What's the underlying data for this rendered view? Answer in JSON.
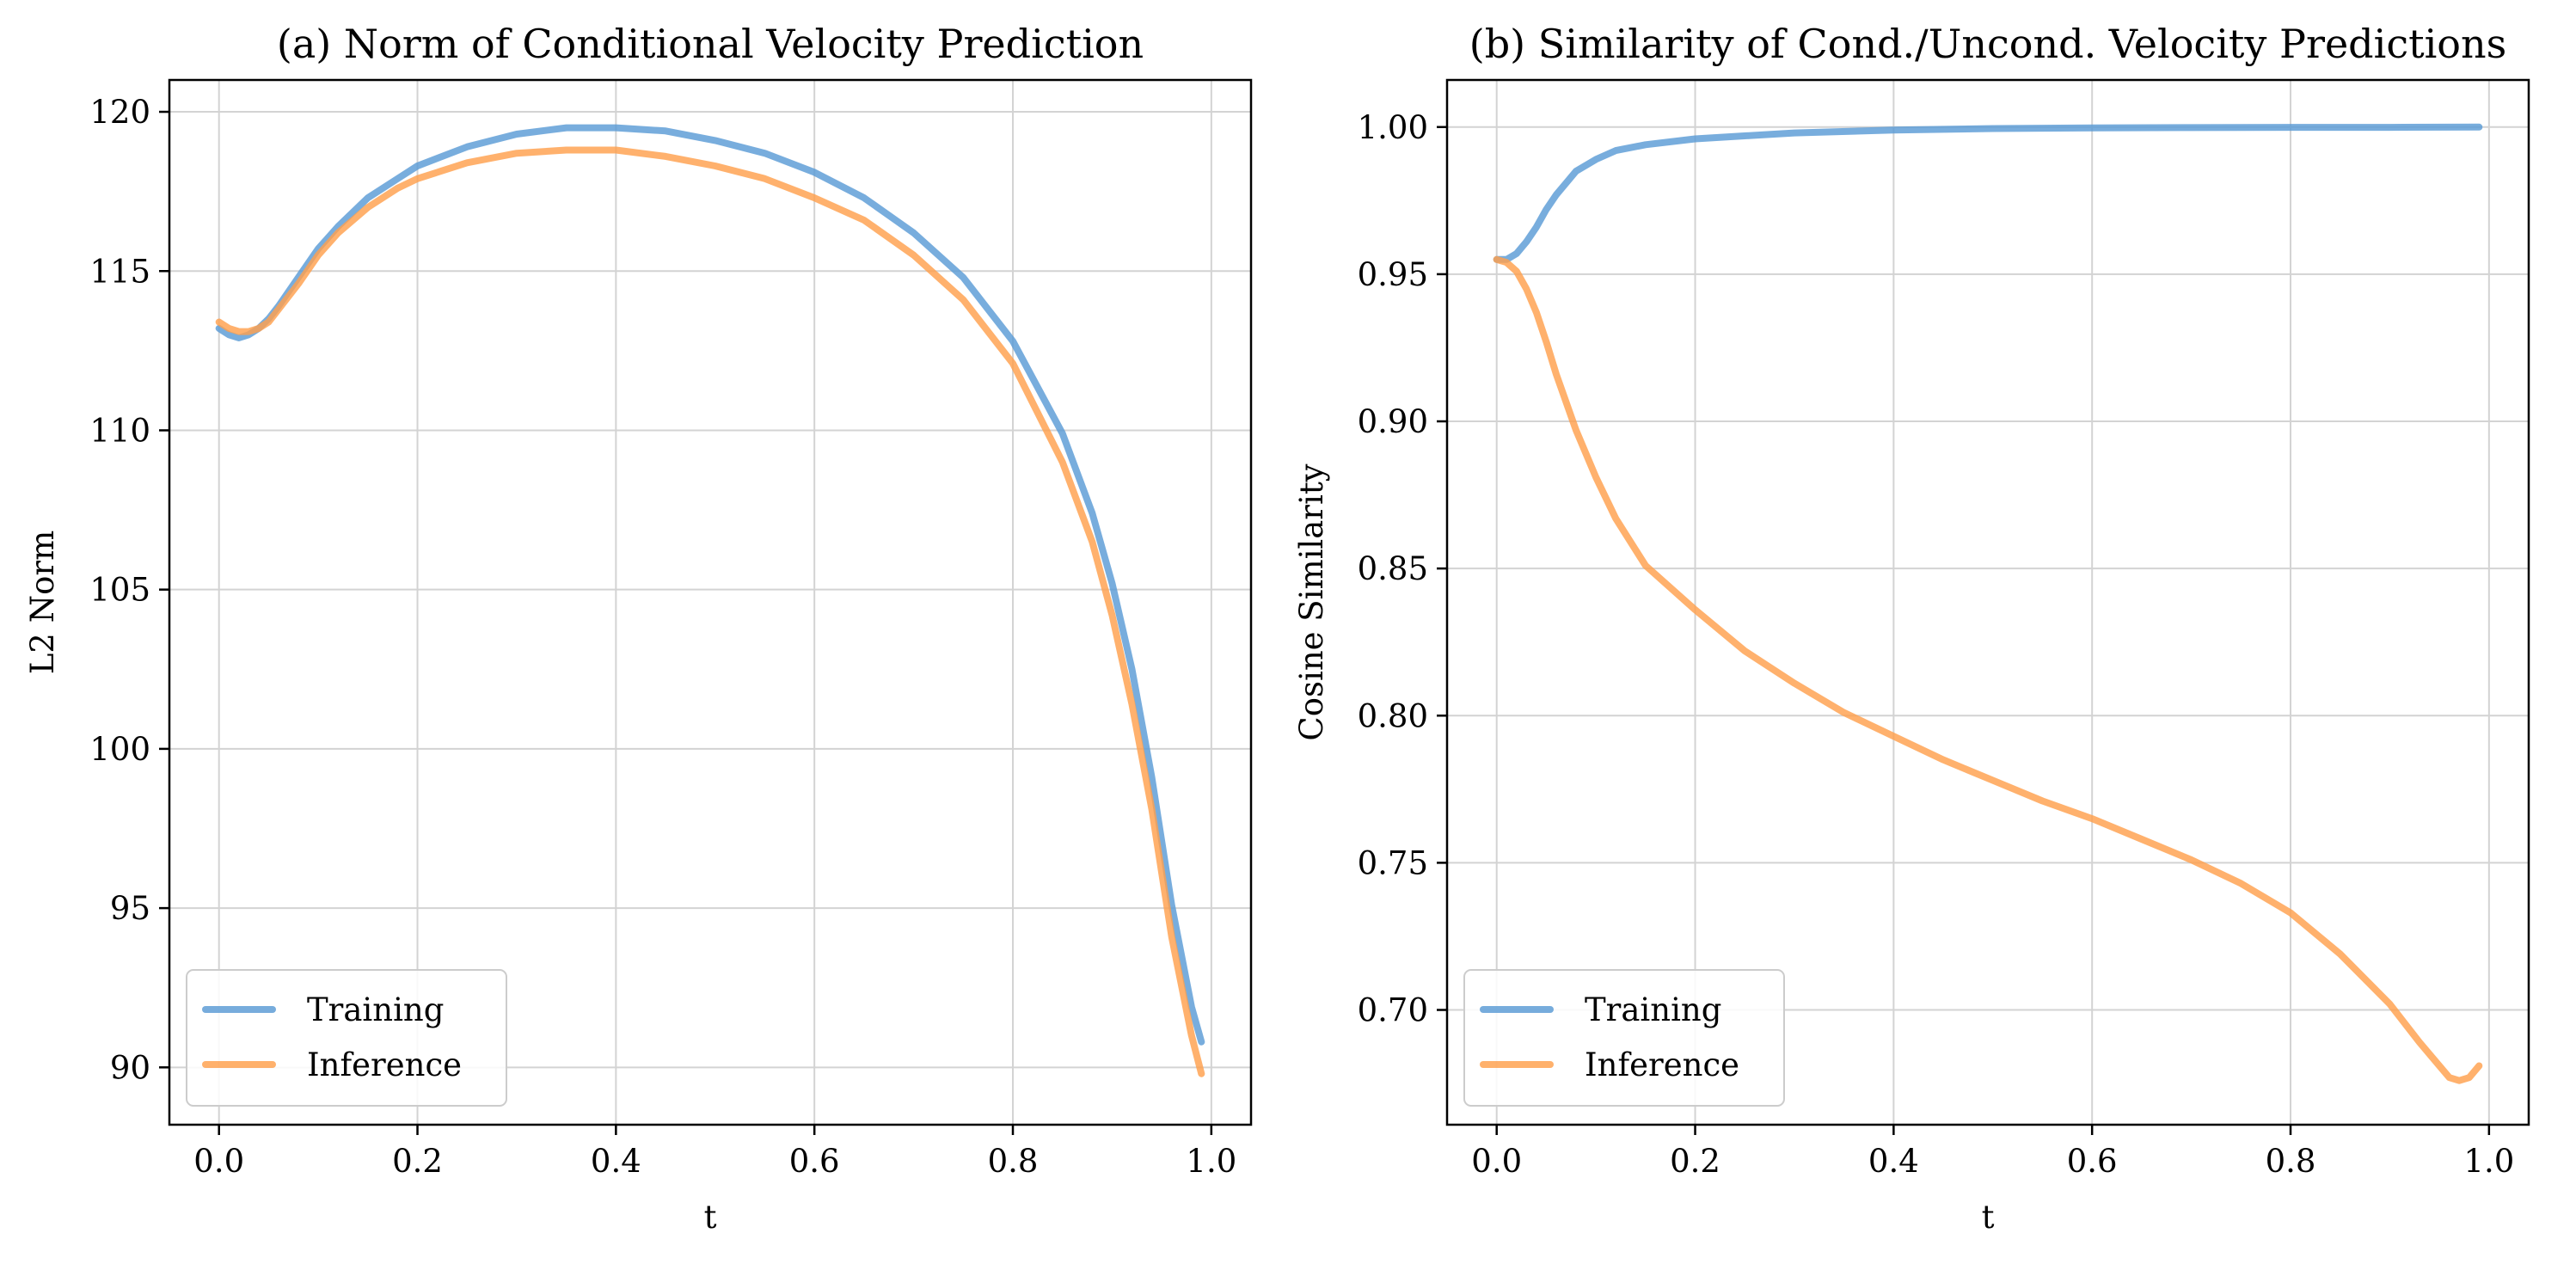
{
  "colors": {
    "training": "#5a9bd5",
    "inference": "#ffa04d"
  },
  "chart_data": [
    {
      "type": "line",
      "title": "(a) Norm of Conditional Velocity Prediction",
      "xlabel": "t",
      "ylabel": "L2 Norm",
      "xlim": [
        -0.05,
        1.04
      ],
      "ylim": [
        88.2,
        121.0
      ],
      "xticks": [
        0.0,
        0.2,
        0.4,
        0.6,
        0.8,
        1.0
      ],
      "xtick_labels": [
        "0.0",
        "0.2",
        "0.4",
        "0.6",
        "0.8",
        "1.0"
      ],
      "yticks": [
        90,
        95,
        100,
        105,
        110,
        115,
        120
      ],
      "ytick_labels": [
        "90",
        "95",
        "100",
        "105",
        "110",
        "115",
        "120"
      ],
      "grid": true,
      "legend": "lower-left",
      "series": [
        {
          "name": "Training",
          "x": [
            0.0,
            0.01,
            0.02,
            0.03,
            0.04,
            0.05,
            0.06,
            0.08,
            0.1,
            0.12,
            0.15,
            0.18,
            0.2,
            0.25,
            0.3,
            0.35,
            0.4,
            0.45,
            0.5,
            0.55,
            0.6,
            0.65,
            0.7,
            0.75,
            0.8,
            0.85,
            0.88,
            0.9,
            0.92,
            0.94,
            0.96,
            0.98,
            0.99
          ],
          "y": [
            113.2,
            113.0,
            112.9,
            113.0,
            113.2,
            113.5,
            113.9,
            114.8,
            115.7,
            116.4,
            117.3,
            117.9,
            118.3,
            118.9,
            119.3,
            119.5,
            119.5,
            119.4,
            119.1,
            118.7,
            118.1,
            117.3,
            116.2,
            114.8,
            112.8,
            109.9,
            107.4,
            105.2,
            102.5,
            99.1,
            95.1,
            91.9,
            90.8
          ]
        },
        {
          "name": "Inference",
          "x": [
            0.0,
            0.01,
            0.02,
            0.03,
            0.04,
            0.05,
            0.06,
            0.08,
            0.1,
            0.12,
            0.15,
            0.18,
            0.2,
            0.25,
            0.3,
            0.35,
            0.4,
            0.45,
            0.5,
            0.55,
            0.6,
            0.65,
            0.7,
            0.75,
            0.8,
            0.85,
            0.88,
            0.9,
            0.92,
            0.94,
            0.96,
            0.98,
            0.99
          ],
          "y": [
            113.4,
            113.2,
            113.1,
            113.1,
            113.2,
            113.4,
            113.8,
            114.6,
            115.5,
            116.2,
            117.0,
            117.6,
            117.9,
            118.4,
            118.7,
            118.8,
            118.8,
            118.6,
            118.3,
            117.9,
            117.3,
            116.6,
            115.5,
            114.1,
            112.1,
            109.0,
            106.5,
            104.2,
            101.4,
            98.1,
            94.1,
            91.0,
            89.8
          ]
        }
      ]
    },
    {
      "type": "line",
      "title": "(b) Similarity of Cond./Uncond. Velocity Predictions",
      "xlabel": "t",
      "ylabel": "Cosine Similarity",
      "xlim": [
        -0.05,
        1.04
      ],
      "ylim": [
        0.661,
        1.016
      ],
      "xticks": [
        0.0,
        0.2,
        0.4,
        0.6,
        0.8,
        1.0
      ],
      "xtick_labels": [
        "0.0",
        "0.2",
        "0.4",
        "0.6",
        "0.8",
        "1.0"
      ],
      "yticks": [
        0.7,
        0.75,
        0.8,
        0.85,
        0.9,
        0.95,
        1.0
      ],
      "ytick_labels": [
        "0.70",
        "0.75",
        "0.80",
        "0.85",
        "0.90",
        "0.95",
        "1.00"
      ],
      "grid": true,
      "legend": "lower-left",
      "series": [
        {
          "name": "Training",
          "x": [
            0.0,
            0.01,
            0.02,
            0.03,
            0.04,
            0.05,
            0.06,
            0.07,
            0.08,
            0.1,
            0.12,
            0.15,
            0.2,
            0.25,
            0.3,
            0.4,
            0.5,
            0.6,
            0.7,
            0.8,
            0.9,
            0.99
          ],
          "y": [
            0.955,
            0.955,
            0.957,
            0.961,
            0.966,
            0.972,
            0.977,
            0.981,
            0.985,
            0.989,
            0.992,
            0.994,
            0.996,
            0.997,
            0.998,
            0.999,
            0.9995,
            0.9997,
            0.9998,
            0.9999,
            0.9999,
            1.0
          ]
        },
        {
          "name": "Inference",
          "x": [
            0.0,
            0.01,
            0.02,
            0.03,
            0.04,
            0.05,
            0.06,
            0.08,
            0.1,
            0.12,
            0.15,
            0.2,
            0.25,
            0.3,
            0.35,
            0.4,
            0.45,
            0.5,
            0.55,
            0.6,
            0.65,
            0.7,
            0.75,
            0.8,
            0.85,
            0.9,
            0.93,
            0.95,
            0.96,
            0.97,
            0.98,
            0.99
          ],
          "y": [
            0.955,
            0.954,
            0.951,
            0.945,
            0.937,
            0.927,
            0.916,
            0.897,
            0.881,
            0.867,
            0.851,
            0.836,
            0.822,
            0.811,
            0.801,
            0.793,
            0.785,
            0.778,
            0.771,
            0.765,
            0.758,
            0.751,
            0.743,
            0.733,
            0.719,
            0.702,
            0.689,
            0.681,
            0.677,
            0.676,
            0.677,
            0.681
          ]
        }
      ]
    }
  ]
}
